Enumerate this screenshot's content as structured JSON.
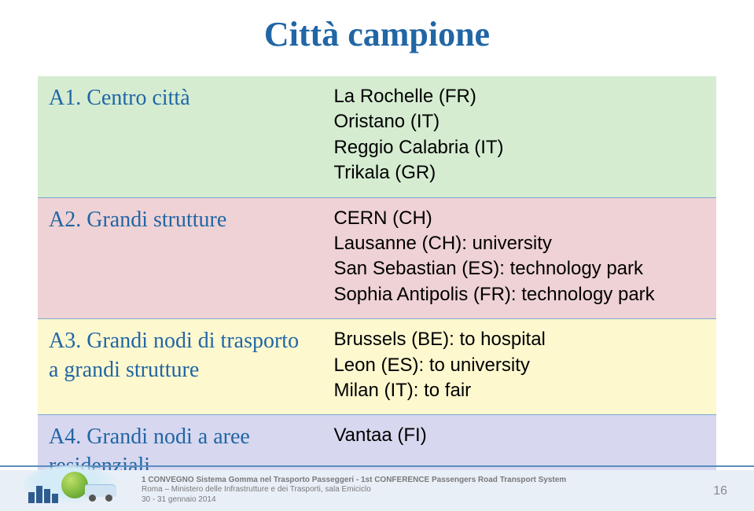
{
  "title": "Città campione",
  "rows": [
    {
      "bg": "bg1",
      "left_prefix": "A1.",
      "left_text": " Centro città",
      "right_lines": [
        "La Rochelle (FR)",
        "Oristano (IT)",
        "Reggio Calabria (IT)",
        "Trikala (GR)"
      ]
    },
    {
      "bg": "bg2",
      "left_prefix": "A2.",
      "left_text": " Grandi strutture",
      "right_lines": [
        "CERN (CH)",
        "Lausanne (CH): university",
        "San Sebastian (ES): technology park",
        "Sophia Antipolis (FR): technology park"
      ]
    },
    {
      "bg": "bg3",
      "left_prefix": "A3.",
      "left_text": " Grandi nodi di trasporto a grandi strutture",
      "right_lines": [
        "Brussels (BE): to hospital",
        "Leon (ES): to university",
        "Milan (IT): to fair"
      ]
    },
    {
      "bg": "bg4",
      "left_prefix": "A4.",
      "left_text": " Grandi nodi a aree residenziali",
      "right_lines": [
        "Vantaa (FI)"
      ]
    }
  ],
  "footer": {
    "line1_bold": "1 CONVEGNO Sistema Gomma nel Trasporto Passeggeri  -  1st CONFERENCE Passengers Road Transport System",
    "line2": "Roma – Ministero delle Infrastrutture e dei Trasporti, sala Emiciclo",
    "line3": "30 - 31 gennaio 2014",
    "page": "16"
  }
}
